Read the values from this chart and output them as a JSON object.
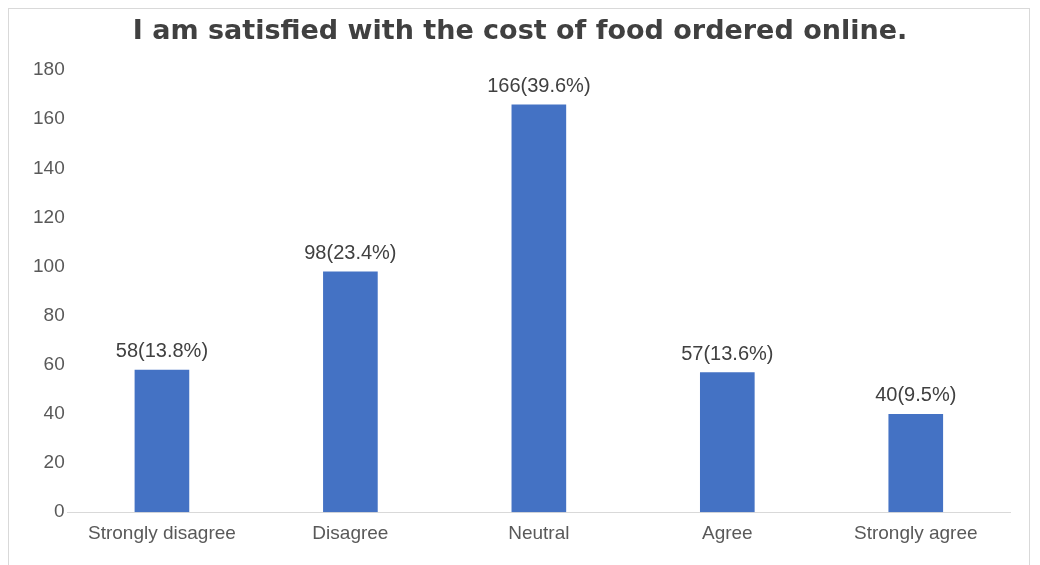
{
  "chart_data": {
    "type": "bar",
    "title": "I am satisfied with the cost of food ordered online.",
    "categories": [
      "Strongly disagree",
      "Disagree",
      "Neutral",
      "Agree",
      "Strongly agree"
    ],
    "values": [
      58,
      98,
      166,
      57,
      40
    ],
    "value_labels": [
      "58(13.8%)",
      "98(23.4%)",
      "166(39.6%)",
      "57(13.6%)",
      "40(9.5%)"
    ],
    "color": "#4472c4",
    "ylim": [
      0,
      180
    ],
    "yticks": [
      0,
      20,
      40,
      60,
      80,
      100,
      120,
      140,
      160,
      180
    ],
    "grid": false,
    "legend": false
  }
}
